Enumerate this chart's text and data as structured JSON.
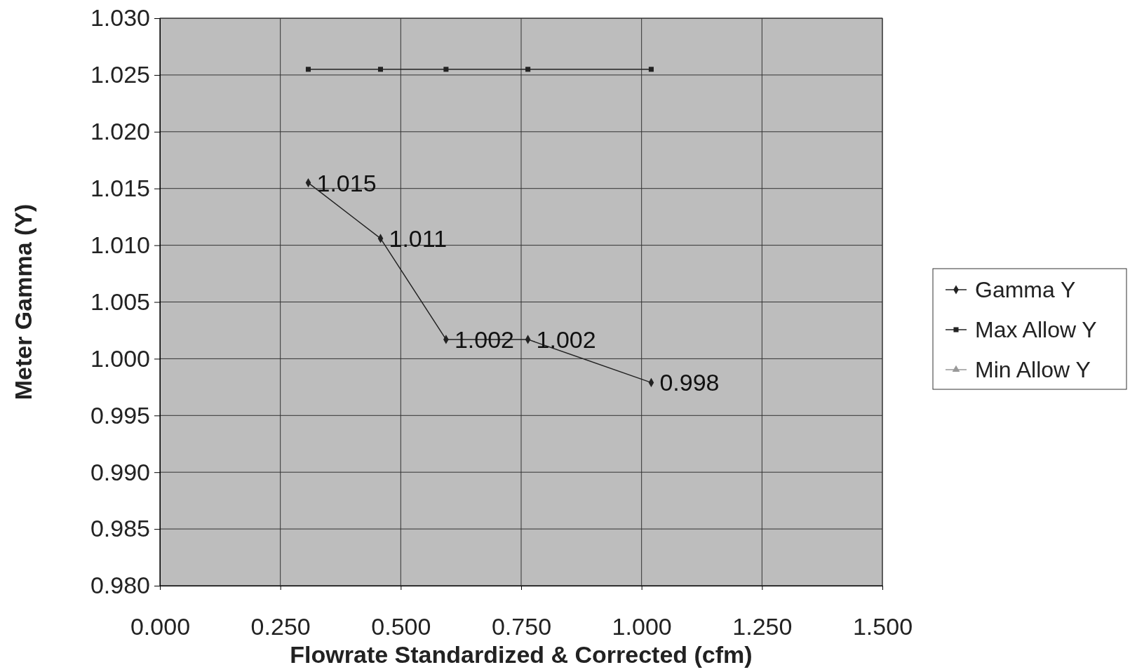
{
  "chart_data": {
    "type": "line",
    "xlabel": "Flowrate Standardized & Corrected (cfm)",
    "ylabel": "Meter Gamma (Y)",
    "xlim": [
      0,
      1.5
    ],
    "xticks": [
      {
        "value": 0,
        "label": "0.000"
      },
      {
        "value": 0.25,
        "label": "0.250"
      },
      {
        "value": 0.5,
        "label": "0.500"
      },
      {
        "value": 0.75,
        "label": "0.750"
      },
      {
        "value": 1,
        "label": "1.000"
      },
      {
        "value": 1.25,
        "label": "1.250"
      },
      {
        "value": 1.5,
        "label": "1.500"
      }
    ],
    "ylim": [
      0.98,
      1.03
    ],
    "yticks": [
      {
        "value": 0.98,
        "label": "0.980"
      },
      {
        "value": 0.985,
        "label": "0.985"
      },
      {
        "value": 0.99,
        "label": "0.990"
      },
      {
        "value": 0.995,
        "label": "0.995"
      },
      {
        "value": 1,
        "label": "1.000"
      },
      {
        "value": 1.005,
        "label": "1.005"
      },
      {
        "value": 1.01,
        "label": "1.010"
      },
      {
        "value": 1.015,
        "label": "1.015"
      },
      {
        "value": 1.02,
        "label": "1.020"
      },
      {
        "value": 1.025,
        "label": "1.025"
      },
      {
        "value": 1.03,
        "label": "1.030"
      }
    ],
    "grid": true,
    "legend": "right",
    "x": [
      0.308,
      0.458,
      0.594,
      0.764,
      1.02
    ],
    "series": [
      {
        "name": "Gamma Y",
        "color": "#222222",
        "marker": "diamond",
        "values": [
          1.0155,
          1.0106,
          1.0017,
          1.0017,
          0.9979
        ],
        "value_labels": [
          "1.015",
          "1.011",
          "1.002",
          "1.002",
          "0.998"
        ]
      },
      {
        "name": "Max Allow Y",
        "color": "#222222",
        "marker": "square",
        "values": [
          1.0255,
          1.0255,
          1.0255,
          1.0255,
          1.0255
        ]
      },
      {
        "name": "Min Allow Y",
        "color": "#999999",
        "marker": "triangle",
        "values": [
          null,
          null,
          null,
          null,
          null
        ]
      }
    ]
  }
}
